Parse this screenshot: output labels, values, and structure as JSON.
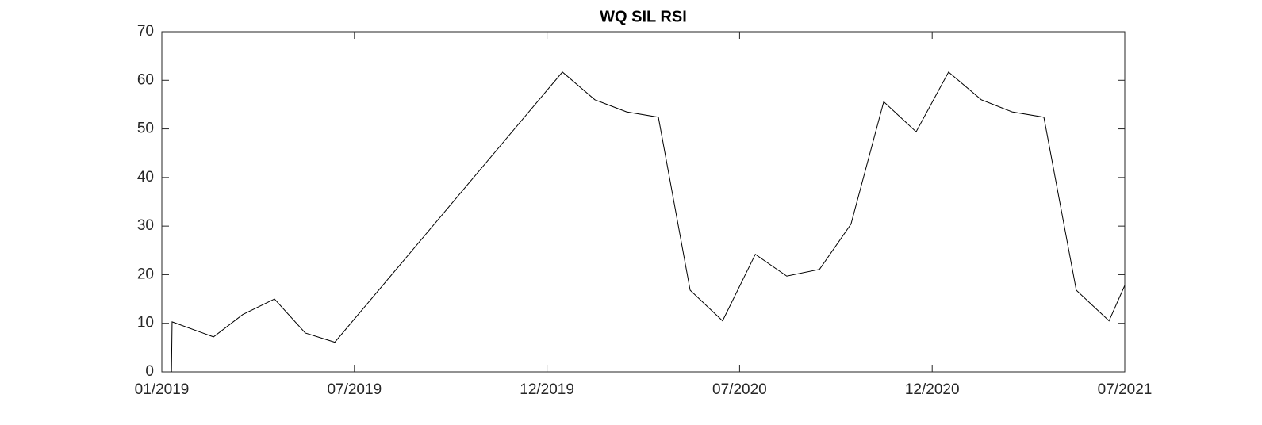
{
  "chart_data": {
    "type": "line",
    "title": "WQ SIL RSI",
    "x": [
      0.3,
      0.32,
      1.61,
      2.52,
      3.51,
      4.47,
      5.39,
      12.48,
      13.49,
      14.48,
      15.47,
      16.46,
      17.47,
      18.49,
      19.47,
      20.49,
      21.47,
      22.49,
      23.5,
      24.51,
      25.53,
      26.49,
      27.48,
      28.49,
      29.51,
      30
    ],
    "series": [
      {
        "name": "WQ SIL RSI",
        "color": "#000000",
        "values": [
          0,
          10.3,
          7.2,
          11.8,
          15,
          8,
          6.1,
          61.7,
          56,
          53.5,
          52.4,
          16.8,
          10.5,
          24.2,
          19.7,
          21.1,
          30.4,
          55.6,
          49.4,
          61.7,
          56,
          53.5,
          52.4,
          16.8,
          10.5,
          17.8
        ]
      }
    ],
    "xlim": [
      0,
      30
    ],
    "xticks": [
      {
        "value": 0,
        "label": "01/2019"
      },
      {
        "value": 6,
        "label": "07/2019"
      },
      {
        "value": 12,
        "label": "12/2019"
      },
      {
        "value": 18,
        "label": "07/2020"
      },
      {
        "value": 24,
        "label": "12/2020"
      },
      {
        "value": 30,
        "label": "07/2021"
      }
    ],
    "ylim": [
      0,
      70
    ],
    "yticks": [
      0,
      10,
      20,
      30,
      40,
      50,
      60,
      70
    ],
    "grid": false
  }
}
